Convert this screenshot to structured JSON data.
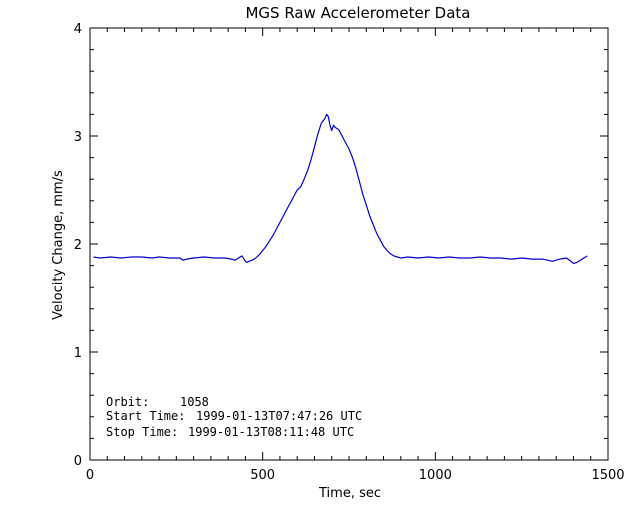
{
  "chart_data": {
    "type": "line",
    "title": "MGS Raw Accelerometer Data",
    "xlabel": "Time, sec",
    "ylabel": "Velocity Change, mm/s",
    "xlim": [
      0,
      1500
    ],
    "ylim": [
      0,
      4
    ],
    "xticks": [
      0,
      500,
      1000,
      1500
    ],
    "yticks": [
      0,
      1,
      2,
      3,
      4
    ],
    "grid": false,
    "series": [
      {
        "color": "#0000cc",
        "x": [
          10,
          30,
          60,
          90,
          120,
          150,
          180,
          200,
          230,
          260,
          270,
          280,
          300,
          330,
          360,
          390,
          410,
          420,
          430,
          440,
          450,
          455,
          460,
          470,
          480,
          490,
          500,
          510,
          520,
          530,
          540,
          550,
          560,
          570,
          580,
          590,
          600,
          610,
          620,
          630,
          640,
          650,
          660,
          670,
          680,
          685,
          690,
          695,
          700,
          705,
          710,
          720,
          730,
          740,
          750,
          760,
          770,
          780,
          790,
          800,
          810,
          820,
          830,
          840,
          850,
          860,
          870,
          880,
          890,
          900,
          920,
          950,
          980,
          1010,
          1040,
          1070,
          1100,
          1130,
          1160,
          1190,
          1220,
          1250,
          1280,
          1310,
          1340,
          1360,
          1380,
          1400,
          1410,
          1420,
          1430,
          1440
        ],
        "y": [
          1.88,
          1.87,
          1.88,
          1.87,
          1.88,
          1.88,
          1.87,
          1.88,
          1.87,
          1.87,
          1.85,
          1.86,
          1.87,
          1.88,
          1.87,
          1.87,
          1.86,
          1.85,
          1.87,
          1.89,
          1.84,
          1.83,
          1.84,
          1.85,
          1.87,
          1.9,
          1.94,
          1.98,
          2.03,
          2.08,
          2.14,
          2.2,
          2.26,
          2.32,
          2.38,
          2.44,
          2.5,
          2.53,
          2.6,
          2.68,
          2.78,
          2.9,
          3.02,
          3.12,
          3.16,
          3.2,
          3.18,
          3.1,
          3.05,
          3.1,
          3.08,
          3.06,
          3.0,
          2.94,
          2.88,
          2.8,
          2.7,
          2.58,
          2.46,
          2.36,
          2.26,
          2.18,
          2.1,
          2.04,
          1.98,
          1.94,
          1.91,
          1.89,
          1.88,
          1.87,
          1.88,
          1.87,
          1.88,
          1.87,
          1.88,
          1.87,
          1.87,
          1.88,
          1.87,
          1.87,
          1.86,
          1.87,
          1.86,
          1.86,
          1.84,
          1.86,
          1.87,
          1.82,
          1.83,
          1.85,
          1.87,
          1.89
        ]
      }
    ],
    "annotations": [
      {
        "label": "Orbit:",
        "value": "1058"
      },
      {
        "label": "Start Time:",
        "value": "1999-01-13T07:47:26 UTC"
      },
      {
        "label": "Stop Time:",
        "value": "1999-01-13T08:11:48 UTC"
      }
    ]
  }
}
